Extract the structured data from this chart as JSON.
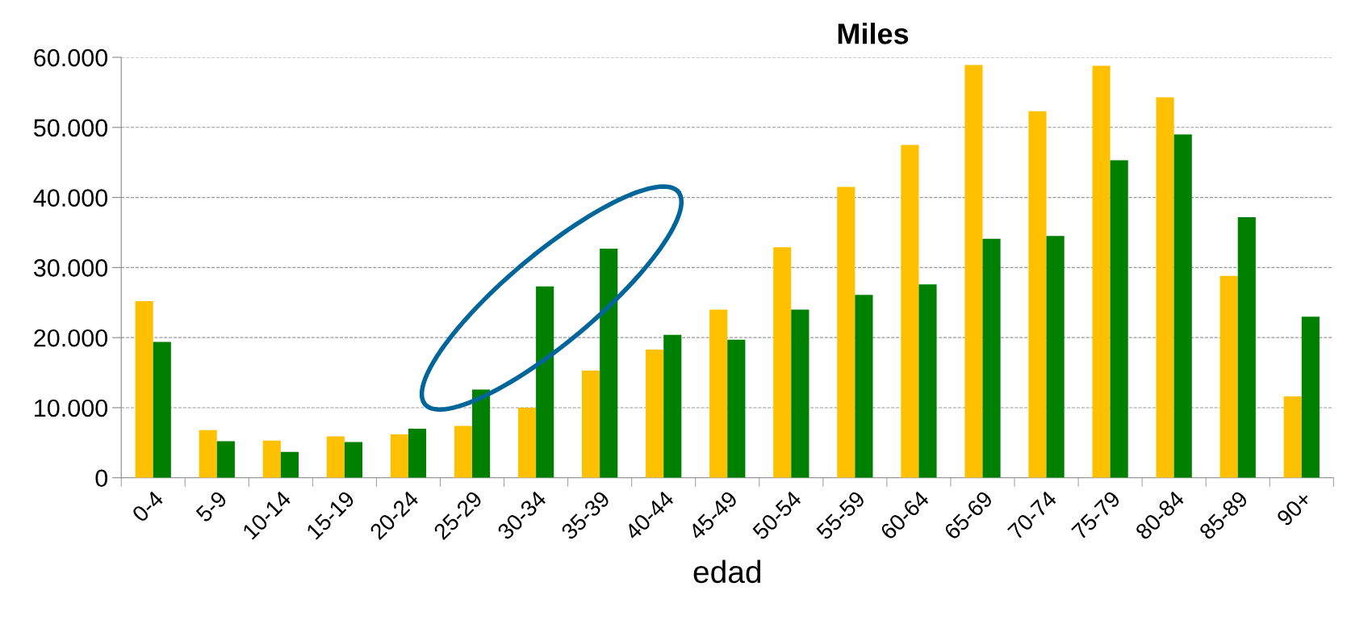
{
  "chart_data": {
    "type": "bar",
    "title": "Miles",
    "xlabel": "edad",
    "categories": [
      "0-4",
      "5-9",
      "10-14",
      "15-19",
      "20-24",
      "25-29",
      "30-34",
      "35-39",
      "40-44",
      "45-49",
      "50-54",
      "55-59",
      "60-64",
      "65-69",
      "70-74",
      "75-79",
      "80-84",
      "85-89",
      "90+"
    ],
    "series": [
      {
        "color": "#ffc000",
        "values": [
          25200,
          6800,
          5300,
          5900,
          6200,
          7400,
          10000,
          15300,
          18300,
          24000,
          32900,
          41500,
          47500,
          58900,
          52300,
          58800,
          54300,
          28800,
          11600
        ]
      },
      {
        "color": "#008000",
        "values": [
          19400,
          5200,
          3700,
          5100,
          7000,
          12600,
          27300,
          32700,
          20400,
          19700,
          24000,
          26100,
          27600,
          34100,
          34500,
          45300,
          49000,
          37200,
          23000
        ]
      }
    ],
    "ylim": [
      0,
      60000
    ],
    "yticks": [
      0,
      {
        "value": 10000,
        "label": "10.000"
      },
      {
        "value": 20000,
        "label": "20.000"
      },
      {
        "value": 30000,
        "label": "30.000"
      },
      {
        "value": 40000,
        "label": "40.000"
      },
      {
        "value": 50000,
        "label": "50.000"
      },
      {
        "value": 60000,
        "label": "60.000"
      }
    ],
    "grid": "y"
  }
}
